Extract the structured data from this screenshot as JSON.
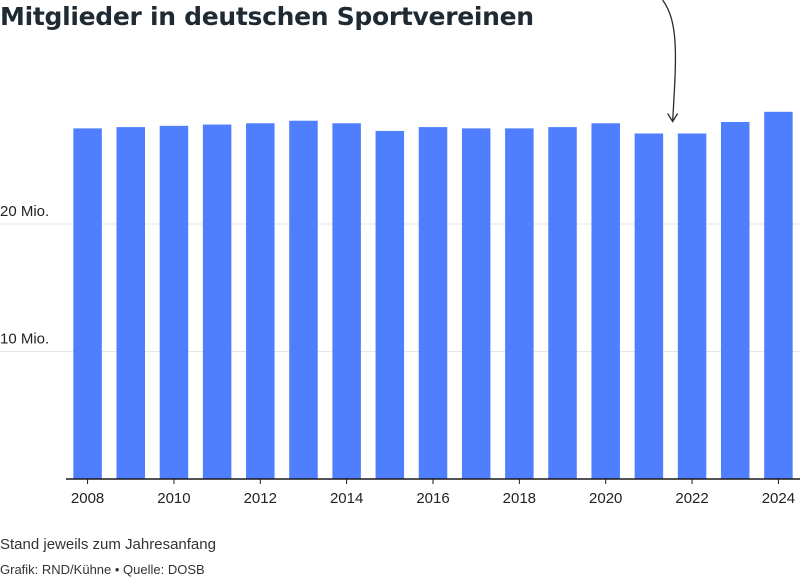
{
  "chart_data": {
    "type": "bar",
    "title": "Mitglieder in deutschen Sportvereinen",
    "categories": [
      "2008",
      "2009",
      "2010",
      "2011",
      "2012",
      "2013",
      "2014",
      "2015",
      "2016",
      "2017",
      "2018",
      "2019",
      "2020",
      "2021",
      "2022",
      "2023",
      "2024"
    ],
    "values": [
      27.5,
      27.6,
      27.7,
      27.8,
      27.9,
      28.1,
      27.9,
      27.3,
      27.6,
      27.5,
      27.5,
      27.6,
      27.9,
      27.1,
      27.1,
      28.0,
      28.8
    ],
    "x_tick_labels": [
      "2008",
      "2010",
      "2012",
      "2014",
      "2016",
      "2018",
      "2020",
      "2022",
      "2024"
    ],
    "y_ticks": [
      {
        "value": 10,
        "label": "10 Mio."
      },
      {
        "value": 20,
        "label": "20 Mio."
      }
    ],
    "ylim": [
      0,
      32
    ],
    "grid": true,
    "bar_color": "#4f7fff",
    "annotation": {
      "type": "arrow",
      "target": "2021"
    }
  },
  "notes": {
    "subtitle": "Stand jeweils zum Jahresanfang",
    "source": "Grafik: RND/Kühne • Quelle: DOSB"
  }
}
